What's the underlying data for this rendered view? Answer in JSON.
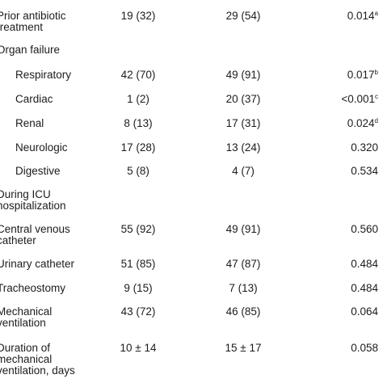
{
  "rows": [
    {
      "label": "Prior antibiotic treatment",
      "c1": "19 (32)",
      "c2": "29 (54)",
      "p": "0.014",
      "sup": "a",
      "indent": false
    },
    {
      "label": "Organ failure",
      "c1": "",
      "c2": "",
      "p": "",
      "sup": "",
      "indent": false
    },
    {
      "label": "Respiratory",
      "c1": "42 (70)",
      "c2": "49 (91)",
      "p": "0.017",
      "sup": "b",
      "indent": true
    },
    {
      "label": "Cardiac",
      "c1": "1 (2)",
      "c2": "20 (37)",
      "p": "<0.001",
      "sup": "c",
      "indent": true
    },
    {
      "label": "Renal",
      "c1": "8 (13)",
      "c2": "17 (31)",
      "p": "0.024",
      "sup": "d",
      "indent": true
    },
    {
      "label": "Neurologic",
      "c1": "17 (28)",
      "c2": "13 (24)",
      "p": "0.320",
      "sup": "",
      "indent": true
    },
    {
      "label": "Digestive",
      "c1": "5 (8)",
      "c2": "4 (7)",
      "p": "0.534",
      "sup": "",
      "indent": true
    },
    {
      "label": "During ICU hospitalization",
      "c1": "",
      "c2": "",
      "p": "",
      "sup": "",
      "indent": false
    },
    {
      "label": "Central venous catheter",
      "c1": "55 (92)",
      "c2": "49 (91)",
      "p": "0.560",
      "sup": "",
      "indent": false
    },
    {
      "label": "Urinary catheter",
      "c1": "51 (85)",
      "c2": "47 (87)",
      "p": "0.484",
      "sup": "",
      "indent": false
    },
    {
      "label": "Tracheostomy",
      "c1": "9 (15)",
      "c2": "7 (13)",
      "p": "0.484",
      "sup": "",
      "indent": false
    },
    {
      "label": "Mechanical ventilation",
      "c1": "43 (72)",
      "c2": "46 (85)",
      "p": "0.064",
      "sup": "",
      "indent": false
    },
    {
      "label": "Duration of mechanical ventilation, days",
      "c1": "10 ± 14",
      "c2": "15 ± 17",
      "p": "0.058",
      "sup": "",
      "indent": false
    }
  ]
}
